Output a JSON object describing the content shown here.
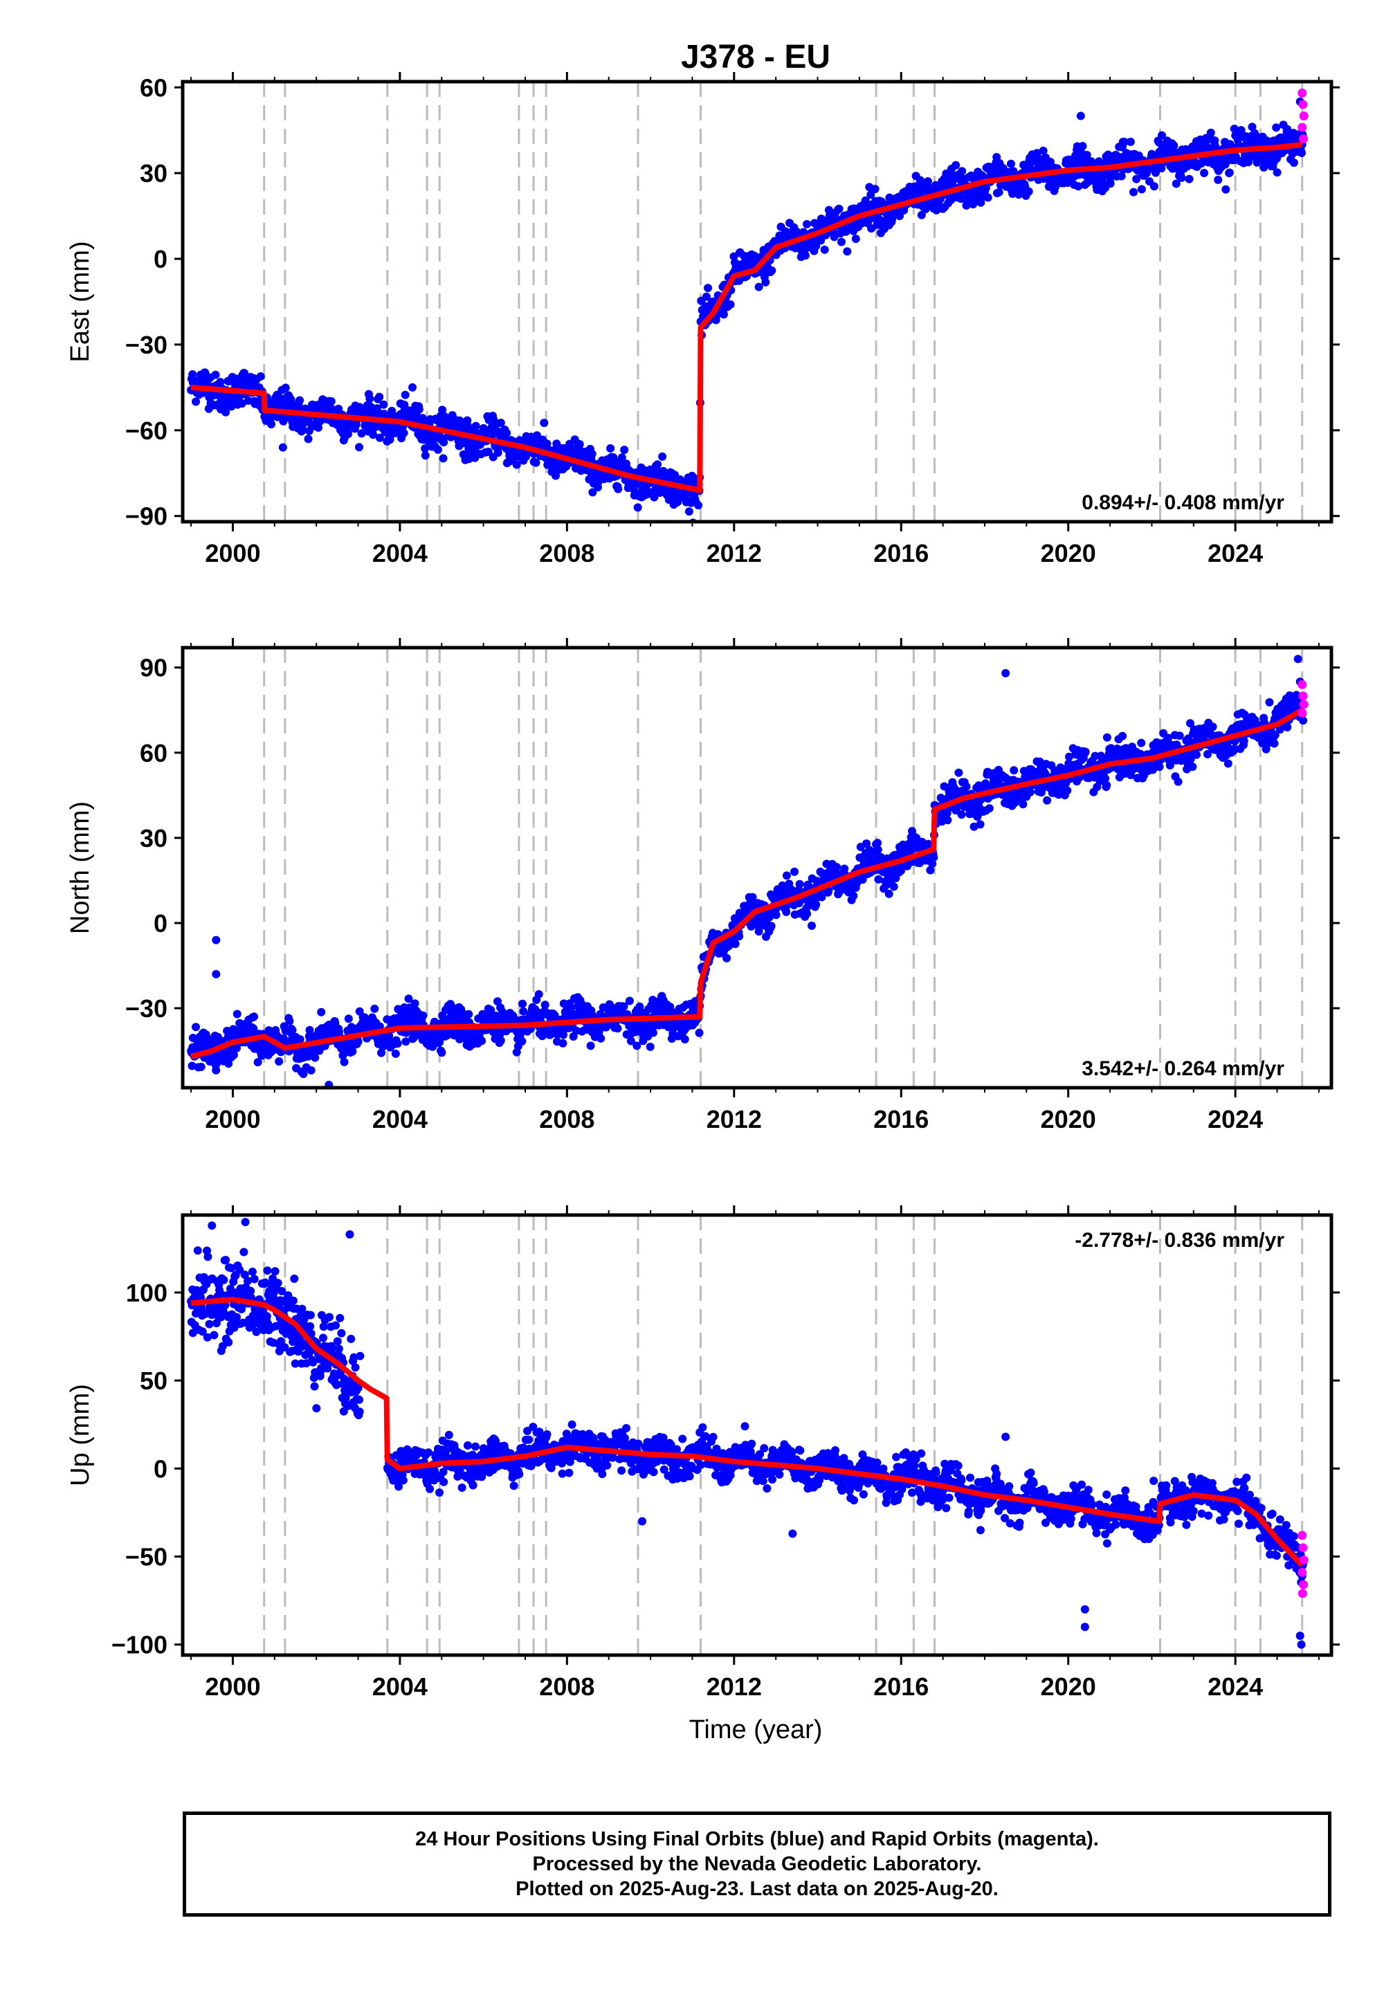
{
  "chart_data": {
    "title": "J378 - EU",
    "xlabel": "Time (year)",
    "x_ticks": [
      "2000",
      "2004",
      "2008",
      "2012",
      "2016",
      "2020",
      "2024"
    ],
    "x_range": [
      1998.8,
      2026.3
    ],
    "event_lines": [
      2000.75,
      2001.25,
      2003.7,
      2004.65,
      2004.95,
      2006.85,
      2007.2,
      2007.5,
      2009.7,
      2011.2,
      2015.4,
      2016.3,
      2016.8,
      2022.2,
      2024.0,
      2024.6,
      2025.6
    ],
    "colors": {
      "final": "#0000ff",
      "rapid": "#ff00ff",
      "model": "#ff0000",
      "event": "#bbbbbb"
    },
    "panels": [
      {
        "type": "scatter",
        "ylabel": "East (mm)",
        "y_ticks": [
          60,
          30,
          0,
          -30,
          -60,
          -90
        ],
        "ylim": [
          -92,
          62
        ],
        "rate_text": "0.894+/- 0.408 mm/yr",
        "rate_position": "bottom-right",
        "data_start": 1999.0,
        "data_end": 2025.63,
        "noise": 3,
        "seasonal_amp": 2,
        "model": [
          [
            1999.0,
            -45
          ],
          [
            2000.75,
            -47
          ],
          [
            2000.76,
            -53
          ],
          [
            2004.0,
            -57
          ],
          [
            2007.0,
            -66
          ],
          [
            2009.5,
            -76
          ],
          [
            2011.18,
            -81
          ],
          [
            2011.2,
            -24
          ],
          [
            2011.5,
            -19
          ],
          [
            2012.0,
            -6
          ],
          [
            2012.5,
            -4
          ],
          [
            2013.0,
            4
          ],
          [
            2014.0,
            9
          ],
          [
            2015.0,
            15
          ],
          [
            2016.0,
            19
          ],
          [
            2017.0,
            23
          ],
          [
            2018.0,
            27
          ],
          [
            2019.0,
            29
          ],
          [
            2020.0,
            31
          ],
          [
            2021.0,
            32
          ],
          [
            2022.0,
            34
          ],
          [
            2023.0,
            36
          ],
          [
            2024.0,
            38
          ],
          [
            2025.0,
            39
          ],
          [
            2025.6,
            40
          ]
        ],
        "outliers": [
          [
            2004.3,
            -45
          ],
          [
            2020.3,
            50
          ],
          [
            2025.55,
            55
          ],
          [
            2001.2,
            -66
          ]
        ],
        "rapid": [
          [
            2025.6,
            58
          ],
          [
            2025.62,
            54
          ],
          [
            2025.64,
            50
          ],
          [
            2025.6,
            46
          ],
          [
            2025.63,
            42
          ]
        ]
      },
      {
        "type": "scatter",
        "ylabel": "North (mm)",
        "y_ticks": [
          90,
          60,
          30,
          0,
          -30
        ],
        "ylim": [
          -58,
          97
        ],
        "rate_text": "3.542+/- 0.264 mm/yr",
        "rate_position": "bottom-right",
        "data_start": 1999.0,
        "data_end": 2025.63,
        "noise": 3,
        "seasonal_amp": 2.5,
        "model": [
          [
            1999.0,
            -47
          ],
          [
            1999.5,
            -45
          ],
          [
            2000.0,
            -42
          ],
          [
            2000.75,
            -40
          ],
          [
            2001.25,
            -44
          ],
          [
            2004.0,
            -37
          ],
          [
            2007.0,
            -36
          ],
          [
            2009.0,
            -34
          ],
          [
            2011.18,
            -33
          ],
          [
            2011.2,
            -21
          ],
          [
            2011.5,
            -7
          ],
          [
            2012.0,
            -3
          ],
          [
            2012.5,
            4
          ],
          [
            2013.5,
            9
          ],
          [
            2015.0,
            18
          ],
          [
            2016.0,
            22
          ],
          [
            2016.78,
            26
          ],
          [
            2016.8,
            40
          ],
          [
            2017.5,
            44
          ],
          [
            2019.0,
            49
          ],
          [
            2020.0,
            52
          ],
          [
            2021.0,
            56
          ],
          [
            2022.0,
            58
          ],
          [
            2023.0,
            62
          ],
          [
            2024.0,
            66
          ],
          [
            2025.0,
            70
          ],
          [
            2025.6,
            75
          ]
        ],
        "outliers": [
          [
            1999.6,
            -6
          ],
          [
            1999.6,
            -18
          ],
          [
            2002.3,
            -57
          ],
          [
            2018.5,
            88
          ],
          [
            2025.5,
            93
          ],
          [
            2025.55,
            85
          ]
        ],
        "rapid": [
          [
            2025.6,
            84
          ],
          [
            2025.62,
            80
          ],
          [
            2025.64,
            77
          ],
          [
            2025.6,
            74
          ]
        ]
      },
      {
        "type": "scatter",
        "ylabel": "Up (mm)",
        "y_ticks": [
          100,
          50,
          0,
          -50,
          -100
        ],
        "ylim": [
          -106,
          144
        ],
        "rate_text": "-2.778+/- 0.836 mm/yr",
        "rate_position": "top-right",
        "data_start": 1999.0,
        "data_end": 2025.63,
        "gap": [
          2003.05,
          2003.7
        ],
        "noise_segments": [
          [
            1999.0,
            2003.05,
            11
          ],
          [
            2003.7,
            2025.63,
            5
          ]
        ],
        "seasonal_amp": 4,
        "model": [
          [
            1999.0,
            94
          ],
          [
            2000.0,
            96
          ],
          [
            2000.75,
            93
          ],
          [
            2001.0,
            90
          ],
          [
            2001.5,
            82
          ],
          [
            2002.0,
            68
          ],
          [
            2002.5,
            60
          ],
          [
            2003.0,
            50
          ],
          [
            2003.3,
            45
          ],
          [
            2003.68,
            40
          ],
          [
            2003.7,
            5
          ],
          [
            2004.0,
            0
          ],
          [
            2005.0,
            3
          ],
          [
            2006.0,
            4
          ],
          [
            2007.0,
            7
          ],
          [
            2008.0,
            12
          ],
          [
            2009.0,
            10
          ],
          [
            2010.0,
            8
          ],
          [
            2011.0,
            7
          ],
          [
            2012.0,
            4
          ],
          [
            2013.0,
            2
          ],
          [
            2014.0,
            0
          ],
          [
            2015.0,
            -3
          ],
          [
            2016.0,
            -6
          ],
          [
            2017.0,
            -10
          ],
          [
            2018.0,
            -15
          ],
          [
            2019.0,
            -18
          ],
          [
            2020.0,
            -22
          ],
          [
            2021.0,
            -26
          ],
          [
            2022.18,
            -30
          ],
          [
            2022.2,
            -20
          ],
          [
            2023.0,
            -15
          ],
          [
            2024.0,
            -18
          ],
          [
            2024.5,
            -26
          ],
          [
            2025.0,
            -40
          ],
          [
            2025.6,
            -55
          ]
        ],
        "outliers": [
          [
            1999.5,
            138
          ],
          [
            2000.3,
            140
          ],
          [
            2002.8,
            133
          ],
          [
            2020.4,
            -90
          ],
          [
            2020.4,
            -80
          ],
          [
            2025.55,
            -95
          ],
          [
            2025.58,
            -100
          ],
          [
            2013.4,
            -37
          ],
          [
            2009.8,
            -30
          ],
          [
            2018.5,
            18
          ],
          [
            2017.9,
            -35
          ]
        ],
        "rapid": [
          [
            2025.6,
            -38
          ],
          [
            2025.62,
            -45
          ],
          [
            2025.64,
            -52
          ],
          [
            2025.6,
            -59
          ],
          [
            2025.63,
            -66
          ],
          [
            2025.61,
            -71
          ]
        ]
      }
    ]
  },
  "footer": {
    "line1": "24 Hour Positions Using Final Orbits (blue) and Rapid Orbits (magenta).",
    "line2": "Processed by the Nevada Geodetic Laboratory.",
    "line3": "Plotted on 2025-Aug-23. Last data on 2025-Aug-20."
  }
}
